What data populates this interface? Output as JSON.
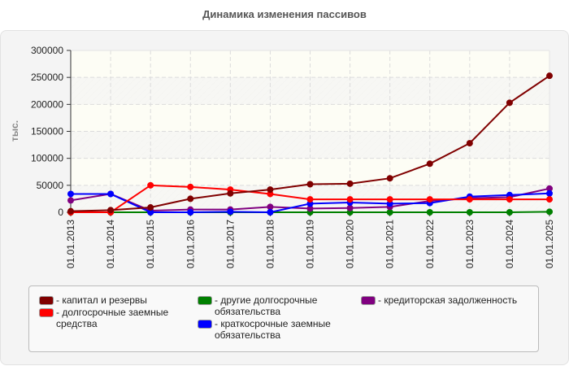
{
  "title": "Динамика изменения пассивов",
  "chart_data": {
    "type": "line",
    "title": "Динамика изменения пассивов",
    "xlabel": "",
    "ylabel": "тыс.",
    "ylim": [
      0,
      300000
    ],
    "yticks": [
      0,
      50000,
      100000,
      150000,
      200000,
      250000,
      300000
    ],
    "grid": true,
    "legend_position": "bottom",
    "categories": [
      "01.01.2013",
      "01.01.2014",
      "01.01.2015",
      "01.01.2016",
      "01.01.2017",
      "01.01.2018",
      "01.01.2019",
      "01.01.2020",
      "01.01.2021",
      "01.01.2022",
      "01.01.2023",
      "01.01.2024",
      "01.01.2025"
    ],
    "series": [
      {
        "name": "капитал и резервы",
        "color": "#800000",
        "values": [
          2000,
          4000,
          9000,
          25000,
          35000,
          42000,
          52000,
          53000,
          63000,
          90000,
          128000,
          203000,
          253000
        ]
      },
      {
        "name": "долгосрочные заемные средства",
        "color": "#ff0000",
        "values": [
          0,
          0,
          50000,
          47000,
          42000,
          34000,
          24000,
          24000,
          24000,
          24000,
          24000,
          24000,
          24000
        ]
      },
      {
        "name": "другие долгосрочные обязательства",
        "color": "#008000",
        "values": [
          0,
          0,
          0,
          0,
          0,
          0,
          0,
          0,
          0,
          0,
          0,
          0,
          1000
        ]
      },
      {
        "name": "краткосрочные заемные обязательства",
        "color": "#0000ff",
        "values": [
          34000,
          34000,
          0,
          0,
          1000,
          0,
          16000,
          18000,
          16000,
          17000,
          29000,
          32000,
          35000
        ]
      },
      {
        "name": "кредиторская задолженность",
        "color": "#800080",
        "values": [
          22000,
          34000,
          3000,
          5000,
          5000,
          10000,
          7000,
          8000,
          10000,
          21000,
          26000,
          28000,
          44000
        ]
      }
    ]
  },
  "legend": {
    "items": [
      {
        "label": "- капитал и резервы",
        "color": "#800000"
      },
      {
        "label": "- долгосрочные заемные\nсредства",
        "color": "#ff0000"
      },
      {
        "label": "- другие долгосрочные\nобязательства",
        "color": "#008000"
      },
      {
        "label": "- краткосрочные заемные\nобязательства",
        "color": "#0000ff"
      },
      {
        "label": "- кредиторская задолженность",
        "color": "#800080"
      }
    ]
  }
}
